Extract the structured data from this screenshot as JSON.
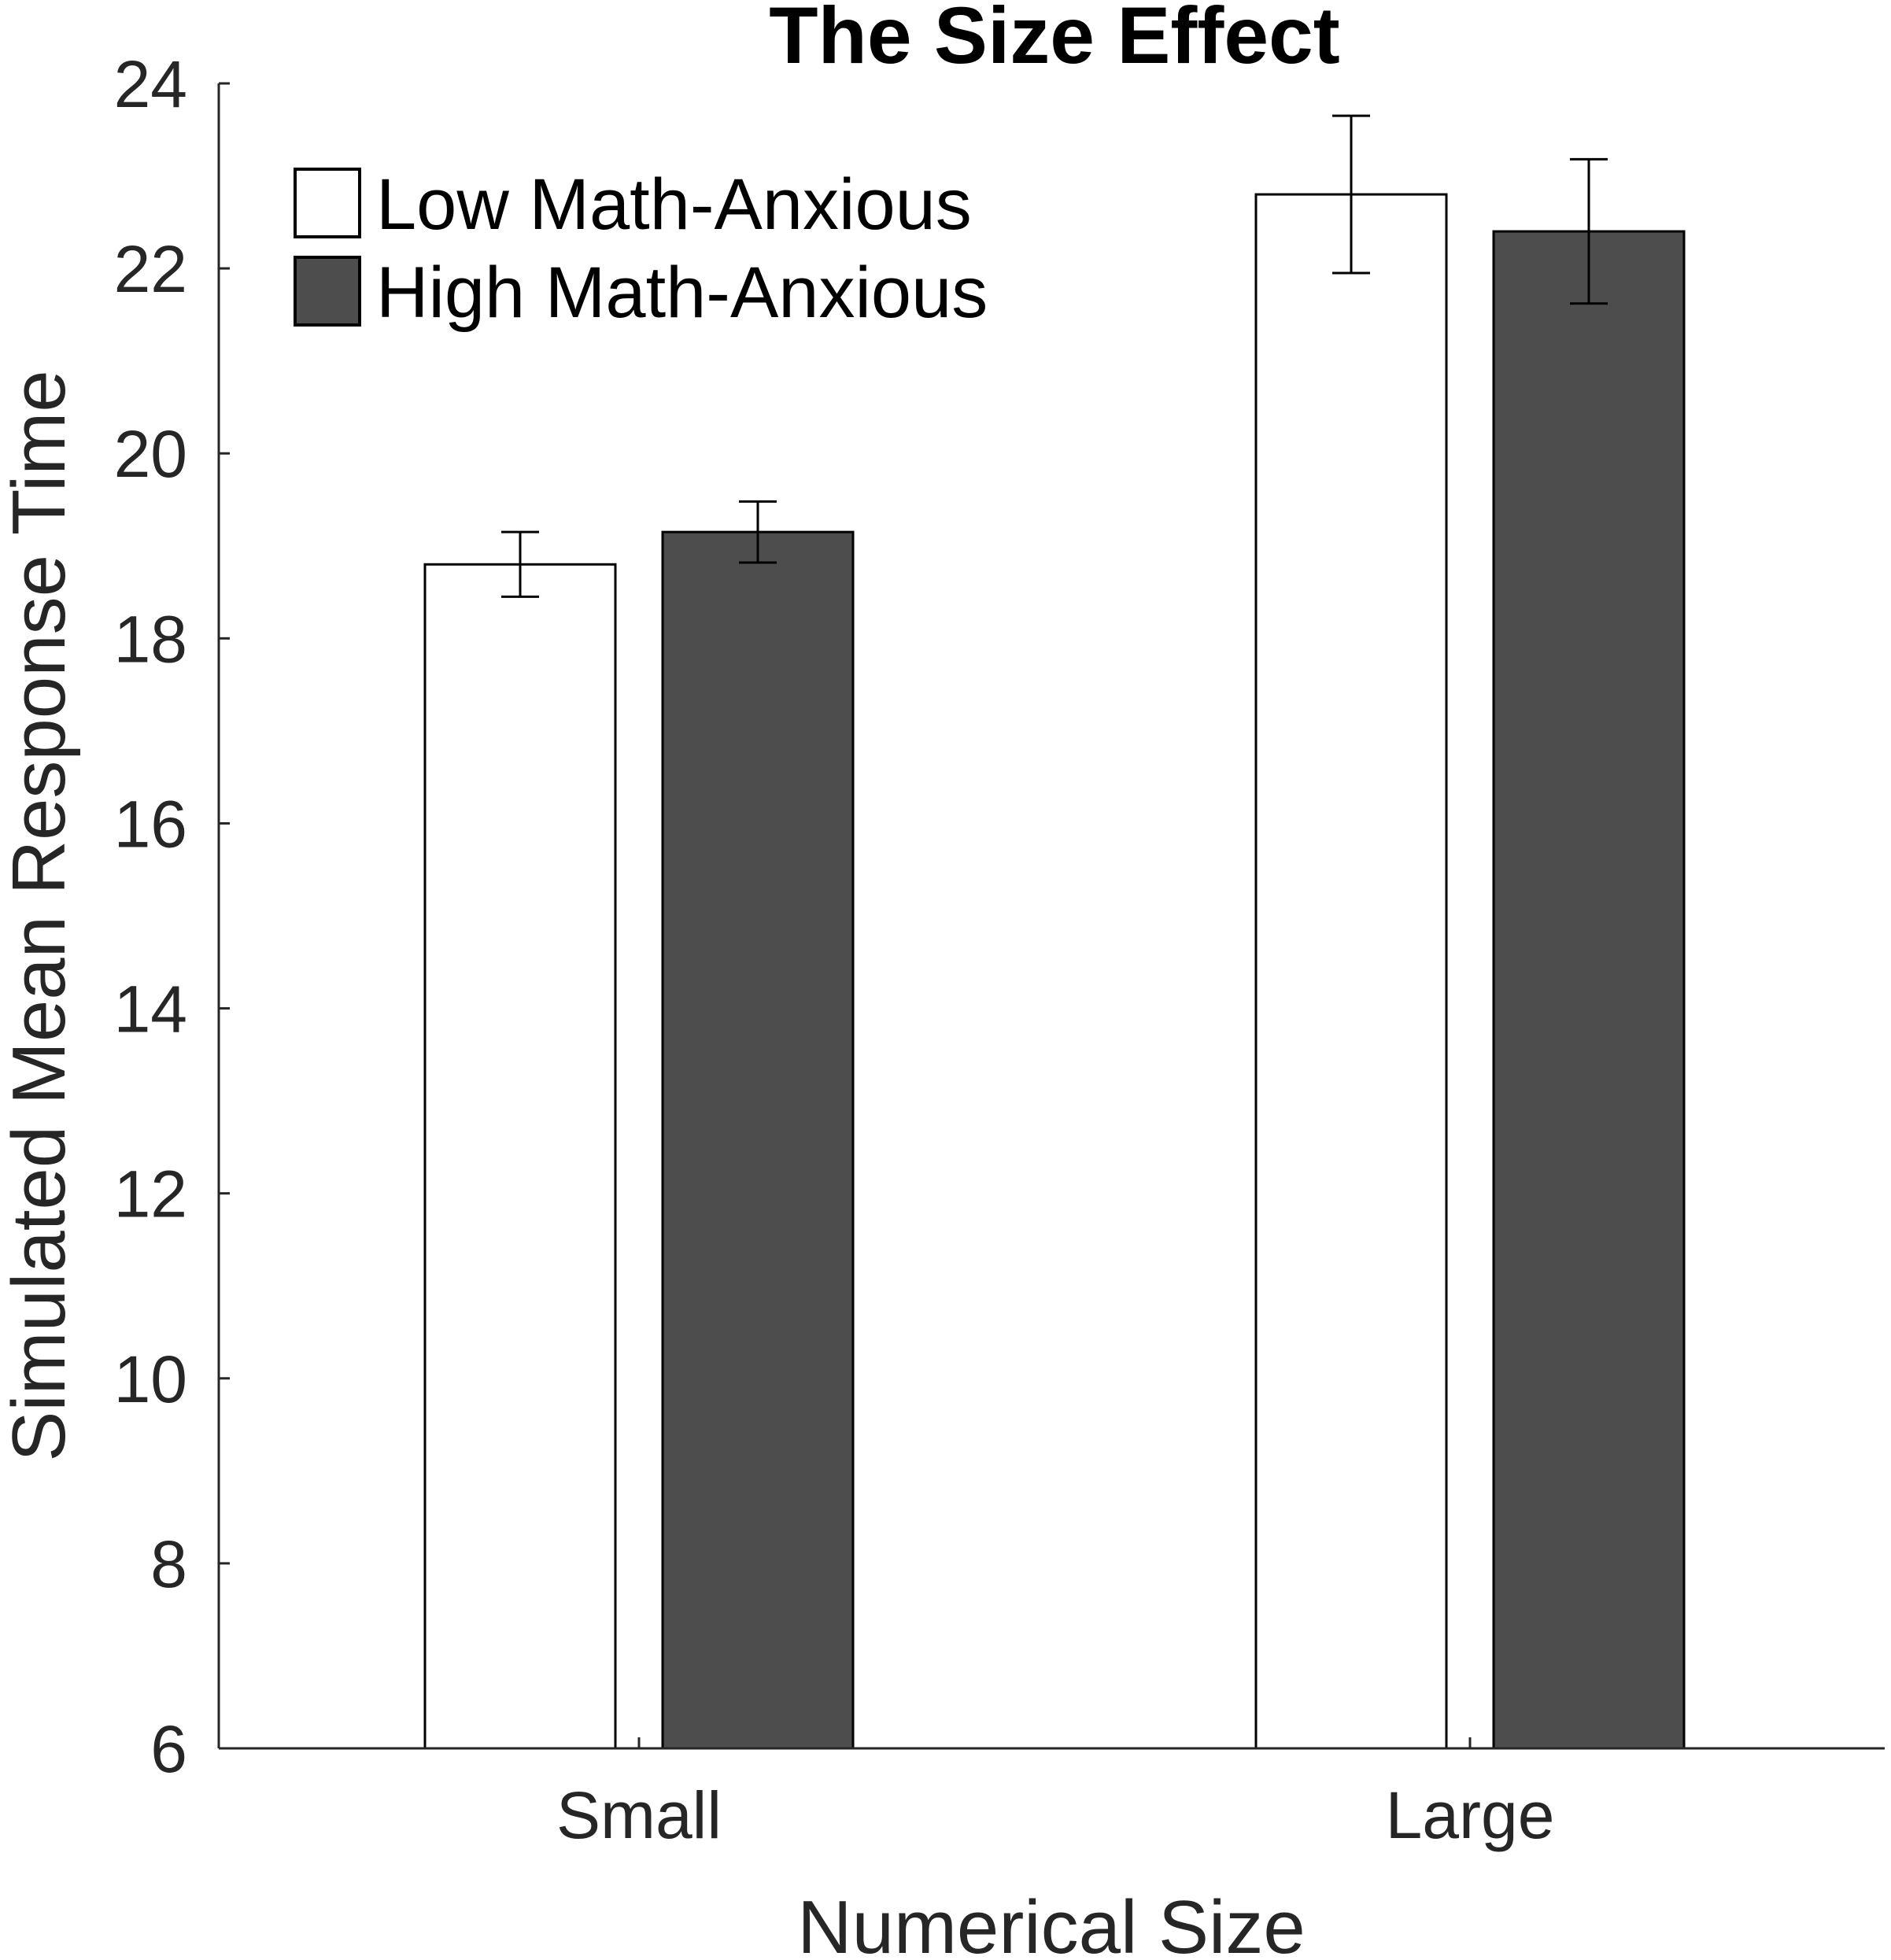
{
  "chart_data": {
    "type": "bar",
    "title": "The Size Effect",
    "xlabel": "Numerical Size",
    "ylabel": "Simulated Mean Response Time",
    "categories": [
      "Small",
      "Large"
    ],
    "ylim": [
      6,
      24
    ],
    "yticks": [
      6,
      8,
      10,
      12,
      14,
      16,
      18,
      20,
      22,
      24
    ],
    "grid": false,
    "legend_position": "top-left",
    "series": [
      {
        "name": "Low Math-Anxious",
        "color": "#ffffff",
        "values": [
          18.8,
          22.8
        ],
        "error": [
          0.35,
          0.85
        ]
      },
      {
        "name": "High Math-Anxious",
        "color": "#4d4d4d",
        "values": [
          19.15,
          22.4
        ],
        "error": [
          0.33,
          0.78
        ]
      }
    ]
  }
}
